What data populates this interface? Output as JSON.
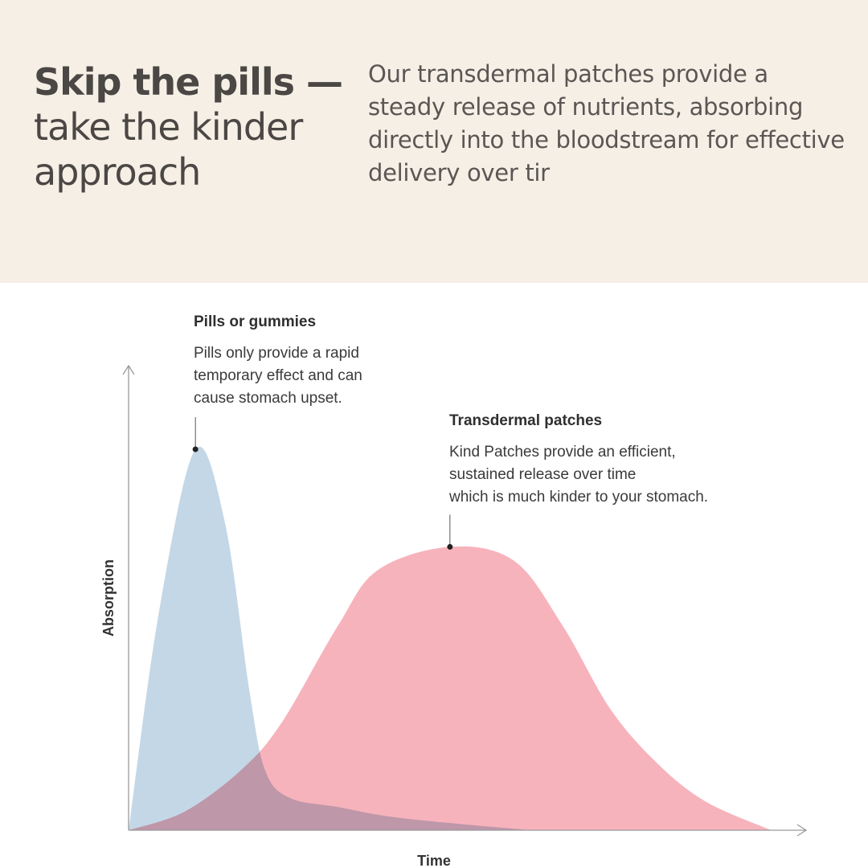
{
  "hero": {
    "headline_bold": "Skip the pills —",
    "headline_rest": [
      "take the kinder",
      "approach"
    ],
    "intro": "Our transdermal patches provide a steady release of nutrients, absorbing directly into the bloodstream for effective delivery over tir"
  },
  "chart_data": {
    "type": "area",
    "xlabel": "Time",
    "ylabel": "Absorption",
    "xlim": [
      0,
      100
    ],
    "ylim": [
      0,
      100
    ],
    "grid": false,
    "ticks": false,
    "series": [
      {
        "name": "Pills or gummies",
        "color": "#c4d7e6",
        "peak": [
          9.9,
          82
        ],
        "annotation": [
          "Pills only provide a rapid",
          "temporary effect and can",
          "cause stomach upset."
        ],
        "points": [
          [
            0,
            0
          ],
          [
            4.5,
            47
          ],
          [
            9.9,
            82
          ],
          [
            14.3,
            66
          ],
          [
            17.9,
            30
          ],
          [
            20.2,
            13
          ],
          [
            23.8,
            7
          ],
          [
            31,
            5
          ],
          [
            40.5,
            2.6
          ],
          [
            59.5,
            0
          ]
        ]
      },
      {
        "name": "Transdermal patches",
        "color": "#f7b3bc",
        "peak": [
          47.6,
          61
        ],
        "annotation": [
          "Kind Patches provide an efficient,",
          "sustained release over time",
          "which is much kinder to your stomach."
        ],
        "points": [
          [
            0,
            0
          ],
          [
            8.3,
            4
          ],
          [
            16.7,
            13
          ],
          [
            22.6,
            23
          ],
          [
            31,
            44
          ],
          [
            36.9,
            56
          ],
          [
            47.6,
            61
          ],
          [
            57.1,
            58
          ],
          [
            64.3,
            44
          ],
          [
            71.4,
            26
          ],
          [
            78.6,
            14
          ],
          [
            85.7,
            6
          ],
          [
            95.2,
            0
          ]
        ]
      }
    ]
  }
}
